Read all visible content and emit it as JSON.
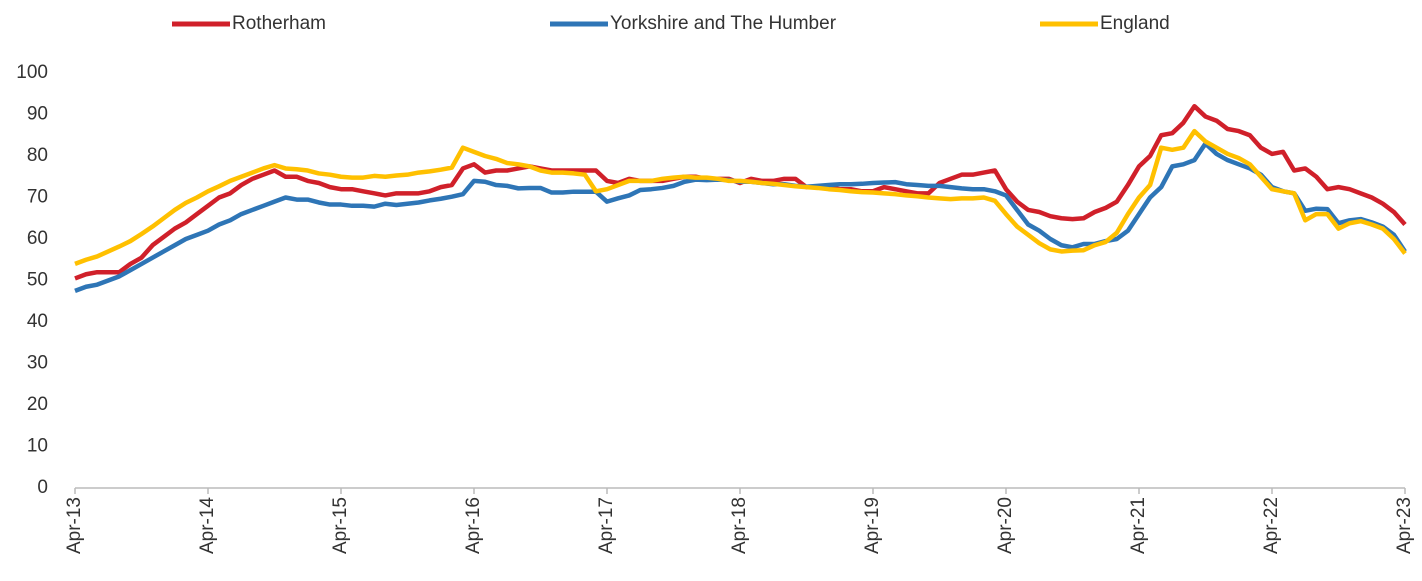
{
  "chart_data": {
    "type": "line",
    "categories": [
      "Apr-13",
      null,
      null,
      null,
      null,
      null,
      null,
      null,
      null,
      null,
      null,
      null,
      "Apr-14",
      null,
      null,
      null,
      null,
      null,
      null,
      null,
      null,
      null,
      null,
      null,
      "Apr-15",
      null,
      null,
      null,
      null,
      null,
      null,
      null,
      null,
      null,
      null,
      null,
      "Apr-16",
      null,
      null,
      null,
      null,
      null,
      null,
      null,
      null,
      null,
      null,
      null,
      "Apr-17",
      null,
      null,
      null,
      null,
      null,
      null,
      null,
      null,
      null,
      null,
      null,
      "Apr-18",
      null,
      null,
      null,
      null,
      null,
      null,
      null,
      null,
      null,
      null,
      null,
      "Apr-19",
      null,
      null,
      null,
      null,
      null,
      null,
      null,
      null,
      null,
      null,
      null,
      "Apr-20",
      null,
      null,
      null,
      null,
      null,
      null,
      null,
      null,
      null,
      null,
      null,
      "Apr-21",
      null,
      null,
      null,
      null,
      null,
      null,
      null,
      null,
      null,
      null,
      null,
      "Apr-22",
      null,
      null,
      null,
      null,
      null,
      null,
      null,
      null,
      null,
      null,
      null,
      "Apr-23"
    ],
    "series": [
      {
        "name": "Rotherham",
        "color": "#d0202a",
        "values": [
          50.5,
          51.5,
          52,
          52,
          52,
          54,
          55.5,
          58.5,
          60.5,
          62.5,
          64,
          66,
          68,
          70,
          71,
          73,
          74.5,
          75.5,
          76.5,
          75,
          75,
          74,
          73.5,
          72.5,
          72,
          72,
          71.5,
          71,
          70.5,
          71,
          71,
          71,
          71.5,
          72.5,
          73,
          77,
          78,
          76,
          76.5,
          76.5,
          77,
          77.5,
          77,
          76.5,
          76.5,
          76.5,
          76.5,
          76.5,
          74,
          73.5,
          74.5,
          74,
          74,
          74,
          74.5,
          75,
          75,
          74.5,
          74.5,
          74.5,
          73.5,
          74.5,
          74,
          74,
          74.5,
          74.5,
          72.5,
          72.5,
          72.5,
          72,
          72,
          71.5,
          71.5,
          72.5,
          72,
          71.5,
          71,
          71,
          73.5,
          74.5,
          75.5,
          75.5,
          76,
          76.5,
          72,
          69,
          67,
          66.5,
          65.5,
          65,
          64.8,
          65,
          66.5,
          67.5,
          69,
          73,
          77.5,
          80,
          85,
          85.5,
          88,
          92,
          89.5,
          88.5,
          86.5,
          86,
          85,
          82,
          80.5,
          81,
          76.5,
          77,
          75,
          72,
          72.5,
          72,
          71,
          70,
          68.5,
          66.5,
          63.5
        ]
      },
      {
        "name": "Yorkshire and The Humber",
        "color": "#2e75b6",
        "values": [
          47.5,
          48.5,
          49,
          50,
          51,
          52.5,
          54,
          55.5,
          57,
          58.5,
          60,
          61,
          62,
          63.5,
          64.5,
          66,
          67,
          68,
          69,
          70,
          69.5,
          69.5,
          68.8,
          68.3,
          68.3,
          68,
          68,
          67.8,
          68.5,
          68.2,
          68.5,
          68.8,
          69.3,
          69.7,
          70.2,
          70.8,
          74,
          73.8,
          73,
          72.8,
          72.2,
          72.3,
          72.3,
          71.2,
          71.2,
          71.4,
          71.4,
          71.4,
          69,
          69.8,
          70.5,
          71.8,
          72,
          72.3,
          72.8,
          73.8,
          74.3,
          74.2,
          74.3,
          74.2,
          73.8,
          73.8,
          73.5,
          73.2,
          73.2,
          72.8,
          72.6,
          72.8,
          73,
          73.2,
          73.2,
          73.3,
          73.5,
          73.6,
          73.7,
          73.2,
          73,
          72.8,
          72.8,
          72.5,
          72.2,
          72,
          72,
          71.5,
          70.5,
          67,
          63.5,
          62,
          60,
          58.5,
          58,
          58.8,
          58.8,
          59.5,
          60,
          62,
          66,
          70,
          72.5,
          77.5,
          78,
          79,
          83,
          80.5,
          79,
          78,
          77,
          75.5,
          72.5,
          71.5,
          71,
          66.8,
          67.3,
          67.2,
          63.8,
          64.5,
          64.8,
          64,
          63,
          61,
          57
        ]
      },
      {
        "name": "England",
        "color": "#ffc000",
        "values": [
          54,
          55,
          55.8,
          57,
          58.2,
          59.5,
          61.2,
          63,
          65,
          67,
          68.7,
          70,
          71.5,
          72.7,
          74,
          75,
          76,
          77,
          77.8,
          77,
          76.8,
          76.5,
          75.8,
          75.5,
          75,
          74.8,
          74.8,
          75.2,
          75,
          75.3,
          75.5,
          76,
          76.3,
          76.7,
          77.2,
          82,
          81,
          80,
          79.3,
          78.3,
          78,
          77.5,
          76.5,
          76,
          76,
          75.8,
          75.5,
          71.5,
          72,
          73,
          74,
          74,
          74,
          74.5,
          74.8,
          75,
          74.8,
          74.8,
          74.5,
          74,
          74,
          73.8,
          73.5,
          73.3,
          73,
          72.7,
          72.5,
          72.3,
          72,
          71.8,
          71.5,
          71.3,
          71.2,
          71,
          70.8,
          70.5,
          70.3,
          70,
          69.8,
          69.6,
          69.8,
          69.8,
          70,
          69.2,
          66,
          63,
          61,
          59,
          57.5,
          57,
          57.2,
          57.3,
          58.5,
          59.3,
          61.5,
          66,
          70,
          73,
          82,
          81.5,
          82,
          86,
          83.5,
          82,
          80.5,
          79.5,
          78,
          75,
          72,
          71.5,
          71,
          64.5,
          66,
          66,
          62.5,
          63.8,
          64.3,
          63.5,
          62.5,
          60,
          56.5
        ]
      }
    ],
    "ylim": [
      0,
      100
    ],
    "yticks": [
      0,
      10,
      20,
      30,
      40,
      50,
      60,
      70,
      80,
      90,
      100
    ],
    "grid": false,
    "legend": "top"
  }
}
